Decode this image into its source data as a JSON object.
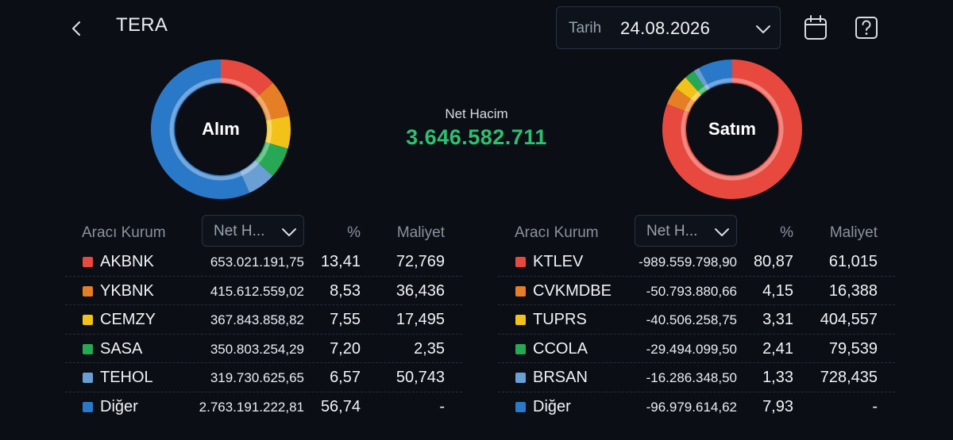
{
  "header": {
    "title": "TERA",
    "date_label": "Tarih",
    "date_value": "24.08.2026"
  },
  "icons": {
    "back": "chevron-left-icon",
    "date_dropdown": "chevron-down-icon",
    "calendar": "calendar-icon",
    "help": "question-mark-icon"
  },
  "summary": {
    "net_label": "Net Hacim",
    "net_value": "3.646.582.711",
    "net_color": "#2fbf71"
  },
  "colors": {
    "red": "#e8493f",
    "orange": "#e57e25",
    "yellow": "#f2c218",
    "green": "#27a855",
    "lightblue": "#6a9fd4",
    "blue": "#2a79c8"
  },
  "buy": {
    "donut_label": "Alım",
    "header_kurum": "Aracı Kurum",
    "header_select": "Net H...",
    "header_pct": "%",
    "header_maliyet": "Maliyet",
    "rows": [
      {
        "name": "AKBNK",
        "net": "653.021.191,75",
        "pct": "13,41",
        "maliyet": "72,769",
        "share": 13.41,
        "color": "#e8493f"
      },
      {
        "name": "YKBNK",
        "net": "415.612.559,02",
        "pct": "8,53",
        "maliyet": "36,436",
        "share": 8.53,
        "color": "#e57e25"
      },
      {
        "name": "CEMZY",
        "net": "367.843.858,82",
        "pct": "7,55",
        "maliyet": "17,495",
        "share": 7.55,
        "color": "#f2c218"
      },
      {
        "name": "SASA",
        "net": "350.803.254,29",
        "pct": "7,20",
        "maliyet": "2,35",
        "share": 7.2,
        "color": "#27a855"
      },
      {
        "name": "TEHOL",
        "net": "319.730.625,65",
        "pct": "6,57",
        "maliyet": "50,743",
        "share": 6.57,
        "color": "#6a9fd4"
      },
      {
        "name": "Diğer",
        "net": "2.763.191.222,81",
        "pct": "56,74",
        "maliyet": "-",
        "share": 56.74,
        "color": "#2a79c8"
      }
    ]
  },
  "sell": {
    "donut_label": "Satım",
    "header_kurum": "Aracı Kurum",
    "header_select": "Net H...",
    "header_pct": "%",
    "header_maliyet": "Maliyet",
    "rows": [
      {
        "name": "KTLEV",
        "net": "-989.559.798,90",
        "pct": "80,87",
        "maliyet": "61,015",
        "share": 80.87,
        "color": "#e8493f"
      },
      {
        "name": "CVKMDBE",
        "net": "-50.793.880,66",
        "pct": "4,15",
        "maliyet": "16,388",
        "share": 4.15,
        "color": "#e57e25"
      },
      {
        "name": "TUPRS",
        "net": "-40.506.258,75",
        "pct": "3,31",
        "maliyet": "404,557",
        "share": 3.31,
        "color": "#f2c218"
      },
      {
        "name": "CCOLA",
        "net": "-29.494.099,50",
        "pct": "2,41",
        "maliyet": "79,539",
        "share": 2.41,
        "color": "#27a855"
      },
      {
        "name": "BRSAN",
        "net": "-16.286.348,50",
        "pct": "1,33",
        "maliyet": "728,435",
        "share": 1.33,
        "color": "#6a9fd4"
      },
      {
        "name": "Diğer",
        "net": "-96.979.614,62",
        "pct": "7,93",
        "maliyet": "-",
        "share": 7.93,
        "color": "#2a79c8"
      }
    ]
  }
}
